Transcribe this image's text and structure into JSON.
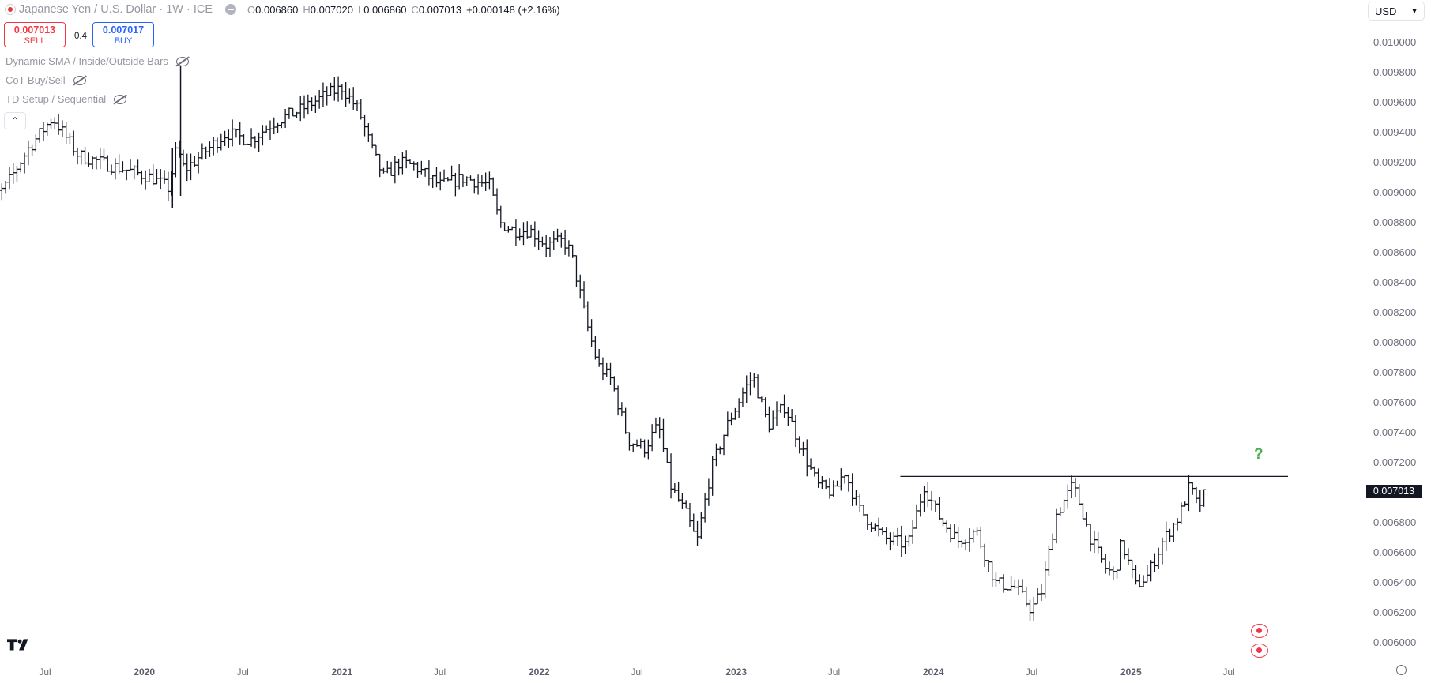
{
  "legend": {
    "symbol": "Japanese Yen / U.S. Dollar · 1W · ICE",
    "o_label": "O",
    "o_value": "0.006860",
    "h_label": "H",
    "h_value": "0.007020",
    "l_label": "L",
    "l_value": "0.006860",
    "c_label": "C",
    "c_value": "0.007013",
    "change": "+0.000148 (+2.16%)"
  },
  "trade": {
    "sell_price": "0.007013",
    "sell_label": "SELL",
    "spread": "0.4",
    "buy_price": "0.007017",
    "buy_label": "BUY"
  },
  "indicators": [
    "Dynamic SMA / Inside/Outside Bars",
    "CoT Buy/Sell",
    "TD Setup / Sequential"
  ],
  "currency": "USD",
  "price_tag": "0.007013",
  "annotation": "?",
  "colors": {
    "bars": "#131722",
    "sell": "#f23645",
    "buy": "#2962ff",
    "annotation": "#4caf50"
  },
  "chart_data": {
    "type": "ohlc",
    "title": "Japanese Yen / U.S. Dollar · 1W · ICE",
    "ylim": [
      0.00597,
      0.01018
    ],
    "yticks": [
      "0.006000",
      "0.006200",
      "0.006400",
      "0.006600",
      "0.006800",
      "0.007000",
      "0.007200",
      "0.007400",
      "0.007600",
      "0.007800",
      "0.008000",
      "0.008200",
      "0.008400",
      "0.008600",
      "0.008800",
      "0.009000",
      "0.009200",
      "0.009400",
      "0.009600",
      "0.009800",
      "0.010000"
    ],
    "xticks": [
      {
        "label": "Jul",
        "date": "2019-07-01",
        "year": false
      },
      {
        "label": "2020",
        "date": "2020-01-01",
        "year": true
      },
      {
        "label": "Jul",
        "date": "2020-07-01",
        "year": false
      },
      {
        "label": "2021",
        "date": "2021-01-01",
        "year": true
      },
      {
        "label": "Jul",
        "date": "2021-07-01",
        "year": false
      },
      {
        "label": "2022",
        "date": "2022-01-01",
        "year": true
      },
      {
        "label": "Jul",
        "date": "2022-07-01",
        "year": false
      },
      {
        "label": "2023",
        "date": "2023-01-01",
        "year": true
      },
      {
        "label": "Jul",
        "date": "2023-07-01",
        "year": false
      },
      {
        "label": "2024",
        "date": "2024-01-01",
        "year": true
      },
      {
        "label": "Jul",
        "date": "2024-07-01",
        "year": false
      },
      {
        "label": "2025",
        "date": "2025-01-01",
        "year": true
      },
      {
        "label": "Jul",
        "date": "2025-07-01",
        "year": false
      }
    ],
    "last_price": 0.007013,
    "resistance": {
      "price": 0.00711,
      "from": "2023-11-01",
      "to": "2025-07-01"
    },
    "close_path": [
      [
        "2019-03-01",
        0.00892
      ],
      [
        "2019-04-15",
        0.00902
      ],
      [
        "2019-06-01",
        0.0093
      ],
      [
        "2019-07-15",
        0.0095
      ],
      [
        "2019-09-01",
        0.00925
      ],
      [
        "2019-10-15",
        0.0092
      ],
      [
        "2019-12-01",
        0.00915
      ],
      [
        "2020-01-15",
        0.0091
      ],
      [
        "2020-02-15",
        0.00903
      ],
      [
        "2020-03-01",
        0.0093
      ],
      [
        "2020-03-15",
        0.00915
      ],
      [
        "2020-04-15",
        0.00925
      ],
      [
        "2020-06-01",
        0.0094
      ],
      [
        "2020-07-15",
        0.00935
      ],
      [
        "2020-09-01",
        0.00948
      ],
      [
        "2020-10-15",
        0.00955
      ],
      [
        "2020-12-01",
        0.00965
      ],
      [
        "2021-01-01",
        0.0097
      ],
      [
        "2021-02-01",
        0.00955
      ],
      [
        "2021-03-01",
        0.00925
      ],
      [
        "2021-03-20",
        0.0091
      ],
      [
        "2021-04-15",
        0.0092
      ],
      [
        "2021-05-15",
        0.00918
      ],
      [
        "2021-07-01",
        0.00905
      ],
      [
        "2021-08-15",
        0.0091
      ],
      [
        "2021-10-01",
        0.00905
      ],
      [
        "2021-10-20",
        0.0088
      ],
      [
        "2021-11-15",
        0.00875
      ],
      [
        "2021-12-15",
        0.00875
      ],
      [
        "2022-01-15",
        0.00865
      ],
      [
        "2022-02-15",
        0.00868
      ],
      [
        "2022-03-01",
        0.0086
      ],
      [
        "2022-04-01",
        0.0081
      ],
      [
        "2022-04-20",
        0.00785
      ],
      [
        "2022-05-15",
        0.00775
      ],
      [
        "2022-06-15",
        0.00735
      ],
      [
        "2022-07-15",
        0.0073
      ],
      [
        "2022-08-10",
        0.00745
      ],
      [
        "2022-09-01",
        0.00705
      ],
      [
        "2022-10-01",
        0.00685
      ],
      [
        "2022-10-20",
        0.00667
      ],
      [
        "2022-11-15",
        0.00715
      ],
      [
        "2022-12-15",
        0.00745
      ],
      [
        "2023-01-15",
        0.00768
      ],
      [
        "2023-02-01",
        0.00778
      ],
      [
        "2023-03-01",
        0.00745
      ],
      [
        "2023-04-01",
        0.00758
      ],
      [
        "2023-05-01",
        0.0073
      ],
      [
        "2023-06-01",
        0.00705
      ],
      [
        "2023-07-01",
        0.007
      ],
      [
        "2023-07-20",
        0.00715
      ],
      [
        "2023-08-15",
        0.0069
      ],
      [
        "2023-10-01",
        0.0067
      ],
      [
        "2023-11-15",
        0.00665
      ],
      [
        "2023-12-15",
        0.00705
      ],
      [
        "2024-01-10",
        0.00685
      ],
      [
        "2024-02-15",
        0.00668
      ],
      [
        "2024-03-20",
        0.00675
      ],
      [
        "2024-04-25",
        0.0064
      ],
      [
        "2024-06-01",
        0.00637
      ],
      [
        "2024-07-01",
        0.00622
      ],
      [
        "2024-07-20",
        0.00635
      ],
      [
        "2024-08-15",
        0.00685
      ],
      [
        "2024-09-15",
        0.00705
      ],
      [
        "2024-10-01",
        0.0069
      ],
      [
        "2024-10-20",
        0.00668
      ],
      [
        "2024-11-15",
        0.0065
      ],
      [
        "2024-12-01",
        0.00645
      ],
      [
        "2024-12-15",
        0.00667
      ],
      [
        "2025-01-10",
        0.00638
      ],
      [
        "2025-02-01",
        0.00645
      ],
      [
        "2025-03-01",
        0.00668
      ],
      [
        "2025-04-01",
        0.00685
      ],
      [
        "2025-04-20",
        0.00705
      ],
      [
        "2025-05-05",
        0.0069
      ],
      [
        "2025-05-20",
        0.00701
      ]
    ],
    "spikes": [
      {
        "date": "2020-03-08",
        "high": 0.00985,
        "low": 0.00898
      },
      {
        "date": "2020-02-22",
        "high": 0.0093,
        "low": 0.0089
      }
    ]
  }
}
